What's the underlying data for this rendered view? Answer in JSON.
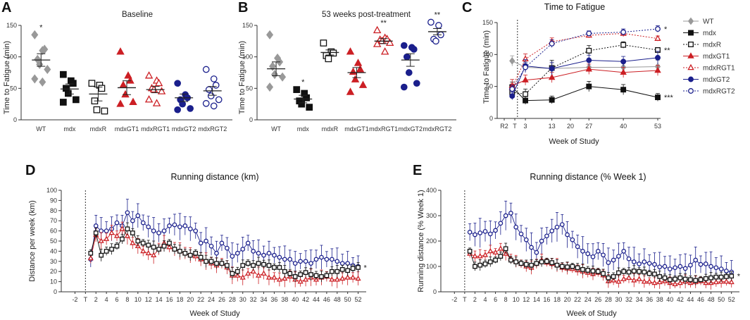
{
  "panels": {
    "A": {
      "label": "A",
      "title": "Baseline",
      "ylabel": "Time to Fatigue (min)"
    },
    "B": {
      "label": "B",
      "title": "53 weeks post-treatment",
      "ylabel": "Time to Fatigue (min)"
    },
    "C": {
      "label": "C",
      "title": "Time to Fatigue",
      "ylabel": "Time to Fatigue (min)",
      "xlabel": "Week of Study"
    },
    "D": {
      "label": "D",
      "title": "Running distance (km)",
      "ylabel": "Distance per week (km)",
      "xlabel": "Week of Study"
    },
    "E": {
      "label": "E",
      "title": "Running distance (% Week 1)",
      "ylabel": "Running distance (% Week 1)",
      "xlabel": "Week of Study"
    }
  },
  "colors": {
    "WT": "#999999",
    "mdx": "#111111",
    "mdxR": "#111111",
    "mdxGT1": "#cc1f24",
    "mdxRGT1": "#cc1f24",
    "mdxGT2": "#1a1f8c",
    "mdxRGT2": "#1a1f8c"
  },
  "chart_data": [
    {
      "id": "A",
      "type": "scatter",
      "title": "Baseline",
      "ylabel": "Time to Fatigue (min)",
      "ylim": [
        0,
        150
      ],
      "yticks": [
        0,
        50,
        100,
        150
      ],
      "categories": [
        "WT",
        "mdx",
        "mdxR",
        "mdxGT1",
        "mdxRGT1",
        "mdxGT2",
        "mdxRGT2"
      ],
      "groups": [
        {
          "name": "WT",
          "marker": "diamond",
          "filled": true,
          "points": [
            135,
            110,
            112,
            96,
            88,
            80,
            65,
            60
          ],
          "mean": 95,
          "sem": 10,
          "sig": "*"
        },
        {
          "name": "mdx",
          "marker": "square",
          "filled": true,
          "points": [
            72,
            62,
            58,
            50,
            42,
            32,
            28
          ],
          "mean": 49,
          "sem": 8,
          "sig": ""
        },
        {
          "name": "mdxR",
          "marker": "square",
          "filled": false,
          "points": [
            58,
            55,
            50,
            30,
            16,
            14
          ],
          "mean": 41,
          "sem": 11,
          "sig": ""
        },
        {
          "name": "mdxGT1",
          "marker": "triangle",
          "filled": true,
          "points": [
            108,
            70,
            62,
            55,
            40,
            28,
            25
          ],
          "mean": 51,
          "sem": 11,
          "sig": ""
        },
        {
          "name": "mdxRGT1",
          "marker": "triangle",
          "filled": false,
          "points": [
            70,
            62,
            58,
            50,
            48,
            45,
            32,
            26
          ],
          "mean": 48,
          "sem": 5,
          "sig": ""
        },
        {
          "name": "mdxGT2",
          "marker": "circle",
          "filled": true,
          "points": [
            58,
            40,
            35,
            32,
            25,
            18,
            16
          ],
          "mean": 35,
          "sem": 6,
          "sig": ""
        },
        {
          "name": "mdxRGT2",
          "marker": "circle",
          "filled": false,
          "points": [
            80,
            65,
            55,
            48,
            38,
            32,
            26,
            22
          ],
          "mean": 46,
          "sem": 7,
          "sig": ""
        }
      ]
    },
    {
      "id": "B",
      "type": "scatter",
      "title": "53 weeks post-treatment",
      "ylabel": "Time to Fatigue (min)",
      "ylim": [
        0,
        150
      ],
      "yticks": [
        0,
        50,
        100,
        150
      ],
      "categories": [
        "WT",
        "mdx",
        "mdxR",
        "mdxGT1",
        "mdxRGT1",
        "mdxGT2",
        "mdxRGT2"
      ],
      "groups": [
        {
          "name": "WT",
          "marker": "diamond",
          "filled": true,
          "points": [
            135,
            98,
            92,
            85,
            72,
            68,
            52
          ],
          "mean": 81,
          "sem": 11,
          "sig": ""
        },
        {
          "name": "mdx",
          "marker": "square",
          "filled": true,
          "points": [
            48,
            42,
            35,
            30,
            25,
            20
          ],
          "mean": 33,
          "sem": 6,
          "sig": "*"
        },
        {
          "name": "mdxR",
          "marker": "square",
          "filled": false,
          "points": [
            122,
            108,
            106,
            102,
            97
          ],
          "mean": 107,
          "sem": 4,
          "sig": ""
        },
        {
          "name": "mdxGT1",
          "marker": "triangle",
          "filled": true,
          "points": [
            108,
            90,
            80,
            76,
            64,
            55,
            44
          ],
          "mean": 75,
          "sem": 8,
          "sig": ""
        },
        {
          "name": "mdxRGT1",
          "marker": "triangle",
          "filled": false,
          "points": [
            142,
            130,
            128,
            127,
            125,
            122,
            120,
            108
          ],
          "mean": 125,
          "sem": 4,
          "sig": "**"
        },
        {
          "name": "mdxGT2",
          "marker": "circle",
          "filled": true,
          "points": [
            118,
            115,
            112,
            100,
            75,
            58,
            52
          ],
          "mean": 95,
          "sem": 10,
          "sig": ""
        },
        {
          "name": "mdxRGT2",
          "marker": "circle",
          "filled": false,
          "points": [
            155,
            150,
            135,
            128,
            125
          ],
          "mean": 140,
          "sem": 5,
          "sig": "**"
        }
      ]
    },
    {
      "id": "C",
      "type": "line",
      "title": "Time to Fatigue",
      "xlabel": "Week of Study",
      "ylabel": "Time to Fatigue (min)",
      "ylim": [
        0,
        150
      ],
      "yticks": [
        0,
        50,
        100,
        150
      ],
      "xticks": [
        "R2",
        "T",
        "3",
        "13",
        "20",
        "27",
        "40",
        "53"
      ],
      "x": [
        -2,
        3,
        13,
        27,
        40,
        53
      ],
      "series": [
        {
          "name": "WT",
          "marker": "diamond",
          "filled": true,
          "dashed": false,
          "values": [
            90,
            80,
            78,
            80,
            80,
            81
          ],
          "err": [
            8,
            6,
            8,
            8,
            8,
            10
          ],
          "sig": ""
        },
        {
          "name": "mdx",
          "marker": "square",
          "filled": true,
          "dashed": false,
          "values": [
            49,
            28,
            29,
            50,
            45,
            33
          ],
          "err": [
            8,
            6,
            6,
            8,
            8,
            6
          ],
          "sig": "***"
        },
        {
          "name": "mdxR",
          "marker": "square",
          "filled": false,
          "dashed": true,
          "values": [
            41,
            38,
            79,
            106,
            115,
            107
          ],
          "err": [
            10,
            8,
            12,
            8,
            5,
            4
          ],
          "sig": "**"
        },
        {
          "name": "mdxGT1",
          "marker": "triangle",
          "filled": true,
          "dashed": false,
          "values": [
            51,
            60,
            64,
            77,
            72,
            75
          ],
          "err": [
            10,
            8,
            8,
            8,
            8,
            8
          ],
          "sig": ""
        },
        {
          "name": "mdxRGT1",
          "marker": "triangle",
          "filled": false,
          "dashed": true,
          "values": [
            48,
            93,
            120,
            130,
            133,
            125
          ],
          "err": [
            6,
            8,
            6,
            4,
            5,
            4
          ],
          "sig": ""
        },
        {
          "name": "mdxGT2",
          "marker": "circle",
          "filled": true,
          "dashed": false,
          "values": [
            35,
            82,
            78,
            91,
            89,
            95
          ],
          "err": [
            6,
            10,
            10,
            8,
            8,
            10
          ],
          "sig": ""
        },
        {
          "name": "mdxRGT2",
          "marker": "circle",
          "filled": false,
          "dashed": true,
          "values": [
            46,
            80,
            117,
            133,
            135,
            140
          ],
          "err": [
            6,
            8,
            6,
            4,
            5,
            5
          ],
          "sig": "*"
        }
      ]
    },
    {
      "id": "D",
      "type": "line",
      "title": "Running distance (km)",
      "xlabel": "Week of Study",
      "ylabel": "Distance per week (km)",
      "ylim": [
        0,
        100
      ],
      "yticks": [
        0,
        10,
        20,
        30,
        40,
        50,
        60,
        70,
        80,
        90,
        100
      ],
      "xticks": [
        "-2",
        "T",
        "2",
        "4",
        "6",
        "8",
        "10",
        "12",
        "14",
        "16",
        "18",
        "20",
        "22",
        "24",
        "26",
        "28",
        "30",
        "32",
        "34",
        "36",
        "38",
        "40",
        "42",
        "44",
        "46",
        "48",
        "50",
        "52"
      ],
      "x_start": 1,
      "x_end": 52,
      "series": [
        {
          "name": "mdxR",
          "marker": "square",
          "filled": false,
          "err_scale": 5,
          "values": [
            38,
            58,
            36,
            40,
            42,
            45,
            52,
            62,
            58,
            50,
            48,
            46,
            44,
            42,
            45,
            48,
            42,
            40,
            38,
            36,
            38,
            34,
            30,
            30,
            28,
            28,
            26,
            18,
            20,
            26,
            28,
            26,
            28,
            27,
            26,
            24,
            24,
            20,
            18,
            15,
            17,
            19,
            17,
            16,
            15,
            16,
            20,
            20,
            22,
            21,
            23,
            24
          ],
          "sig": "*"
        },
        {
          "name": "mdxRGT1",
          "marker": "triangle",
          "filled": false,
          "err_scale": 7,
          "values": [
            33,
            56,
            50,
            52,
            58,
            55,
            62,
            55,
            48,
            45,
            40,
            38,
            36,
            42,
            48,
            44,
            42,
            40,
            38,
            36,
            35,
            32,
            30,
            28,
            26,
            28,
            24,
            16,
            16,
            14,
            18,
            20,
            16,
            18,
            14,
            14,
            12,
            13,
            15,
            12,
            10,
            12,
            14,
            12,
            14,
            15,
            12,
            12,
            13,
            14,
            14,
            13
          ],
          "sig": ""
        },
        {
          "name": "mdxRGT2",
          "marker": "circle",
          "filled": false,
          "err_scale": 11,
          "values": [
            32,
            65,
            60,
            60,
            62,
            68,
            65,
            78,
            70,
            75,
            68,
            64,
            60,
            58,
            60,
            65,
            66,
            64,
            65,
            62,
            60,
            48,
            50,
            45,
            38,
            48,
            43,
            35,
            38,
            42,
            48,
            40,
            38,
            36,
            38,
            36,
            34,
            32,
            32,
            28,
            30,
            30,
            28,
            32,
            34,
            32,
            32,
            30,
            28,
            28,
            26,
            25
          ],
          "sig": ""
        }
      ]
    },
    {
      "id": "E",
      "type": "line",
      "title": "Running distance (% Week 1)",
      "xlabel": "Week of Study",
      "ylabel": "Running distance (% Week 1)",
      "ylim": [
        0,
        400
      ],
      "yticks": [
        0,
        100,
        200,
        300,
        400
      ],
      "xticks": [
        "-2",
        "T",
        "2",
        "4",
        "6",
        "8",
        "10",
        "12",
        "14",
        "16",
        "18",
        "20",
        "22",
        "24",
        "26",
        "28",
        "30",
        "32",
        "34",
        "36",
        "38",
        "40",
        "42",
        "44",
        "46",
        "48",
        "50",
        "52"
      ],
      "x_start": 1,
      "x_end": 52,
      "series": [
        {
          "name": "mdxR",
          "marker": "square",
          "filled": false,
          "err_scale": 18,
          "values": [
            160,
            100,
            105,
            110,
            118,
            125,
            140,
            170,
            125,
            118,
            112,
            108,
            105,
            112,
            118,
            120,
            115,
            105,
            100,
            98,
            100,
            95,
            88,
            85,
            82,
            80,
            72,
            55,
            60,
            75,
            80,
            78,
            82,
            80,
            78,
            72,
            70,
            60,
            55,
            48,
            50,
            55,
            50,
            48,
            45,
            48,
            52,
            55,
            58,
            58,
            60,
            62
          ],
          "sig": "*"
        },
        {
          "name": "mdxRGT1",
          "marker": "triangle",
          "filled": false,
          "err_scale": 22,
          "values": [
            150,
            140,
            140,
            145,
            160,
            155,
            170,
            150,
            130,
            120,
            110,
            100,
            95,
            110,
            125,
            115,
            110,
            105,
            95,
            92,
            90,
            85,
            80,
            75,
            70,
            75,
            65,
            42,
            45,
            40,
            50,
            55,
            45,
            50,
            40,
            40,
            35,
            38,
            42,
            35,
            30,
            35,
            40,
            35,
            38,
            42,
            35,
            35,
            38,
            40,
            40,
            38
          ],
          "sig": ""
        },
        {
          "name": "mdxRGT2",
          "marker": "circle",
          "filled": false,
          "err_scale": 48,
          "values": [
            235,
            225,
            232,
            238,
            228,
            242,
            270,
            300,
            310,
            255,
            228,
            205,
            175,
            155,
            200,
            220,
            240,
            255,
            265,
            225,
            205,
            178,
            160,
            150,
            138,
            160,
            145,
            115,
            125,
            140,
            160,
            130,
            118,
            110,
            118,
            112,
            108,
            98,
            100,
            90,
            95,
            100,
            92,
            105,
            125,
            108,
            110,
            100,
            95,
            90,
            82,
            78
          ],
          "sig": ""
        }
      ]
    }
  ]
}
